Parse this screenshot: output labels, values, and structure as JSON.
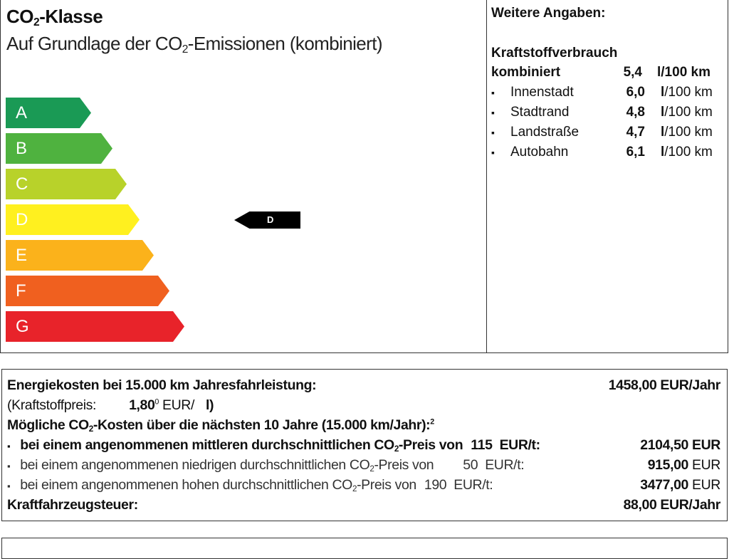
{
  "co2_class": {
    "title_prefix": "CO",
    "title_sub": "2",
    "title_suffix": "-Klasse",
    "subtitle_prefix": "Auf Grundlage der CO",
    "subtitle_sub": "2",
    "subtitle_suffix": "-Emissionen (kombiniert)",
    "classes": [
      {
        "label": "A",
        "color": "#1a9a55"
      },
      {
        "label": "B",
        "color": "#4fb23f"
      },
      {
        "label": "C",
        "color": "#b8d22a"
      },
      {
        "label": "D",
        "color": "#fff01f"
      },
      {
        "label": "E",
        "color": "#fbb21b"
      },
      {
        "label": "F",
        "color": "#f0601f"
      },
      {
        "label": "G",
        "color": "#e8232a"
      }
    ],
    "current_class": "D"
  },
  "further": {
    "heading": "Weitere Angaben:",
    "consumption_heading": "Kraftstoffverbrauch",
    "combined_label": "kombiniert",
    "combined_value": "5,4",
    "combined_unit": "l/100 km",
    "rows": [
      {
        "label": "Innenstadt",
        "value": "6,0",
        "unit_l": "l",
        "unit_rest": "/100 km"
      },
      {
        "label": "Stadtrand",
        "value": "4,8",
        "unit_l": "l",
        "unit_rest": "/100 km"
      },
      {
        "label": "Landstraße",
        "value": "4,7",
        "unit_l": "l",
        "unit_rest": "/100 km"
      },
      {
        "label": "Autobahn",
        "value": "6,1",
        "unit_l": "l",
        "unit_rest": "/100 km"
      }
    ],
    "bullet": "▪"
  },
  "costs": {
    "energy_label": "Energiekosten bei 15.000 km Jahresfahrleistung:",
    "energy_value": "1458,00 EUR/Jahr",
    "fuel_price_label": "(Kraftstoffpreis:",
    "fuel_price_value": "1,80",
    "fuel_price_sup": "0",
    "fuel_price_unit": "EUR/",
    "fuel_price_l": "l)",
    "co2_heading_prefix": "Mögliche CO",
    "co2_heading_sub": "2",
    "co2_heading_suffix": "-Kosten über die nächsten 10 Jahre (15.000 km/Jahr):",
    "co2_heading_sup": "2",
    "scenarios": [
      {
        "pre": "bei einem angenommenen mittleren durchschnittlichen CO",
        "post": "-Preis von",
        "price": "115",
        "unit": "EUR/t:",
        "amount": "2104,50",
        "currency": "EUR"
      },
      {
        "pre": "bei einem angenommenen niedrigen durchschnittlichen CO",
        "post": "-Preis von",
        "price": "50",
        "unit": "EUR/t:",
        "amount": "915,00",
        "currency": "EUR"
      },
      {
        "pre": "bei einem angenommenen hohen durchschnittlichen CO",
        "post": "-Preis von",
        "price": "190",
        "unit": "EUR/t:",
        "amount": "3477,00",
        "currency": "EUR"
      }
    ],
    "sub2": "2",
    "tax_label": "Kraftfahrzeugsteuer:",
    "tax_value": "88,00 EUR/Jahr"
  }
}
